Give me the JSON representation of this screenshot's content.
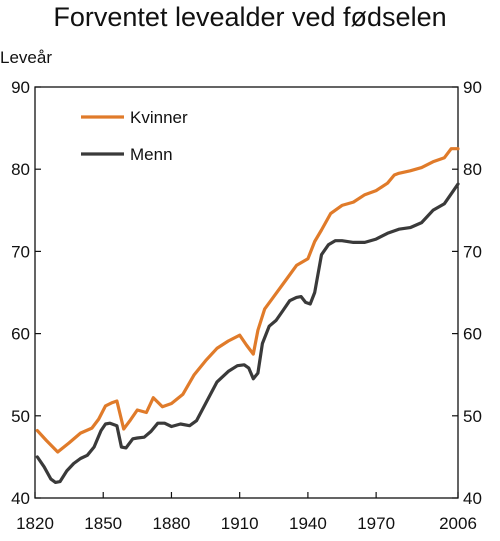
{
  "chart_data": {
    "type": "line",
    "title": "Forventet levealder ved fødselen",
    "ylabel": "Leveår",
    "xlabel": "",
    "xlim": [
      1820,
      2006
    ],
    "ylim": [
      40,
      90
    ],
    "xticks": [
      1820,
      1850,
      1880,
      1910,
      1940,
      1970,
      2006
    ],
    "yticks": [
      40,
      50,
      60,
      70,
      80,
      90
    ],
    "grid": false,
    "legend": "top-left",
    "series": [
      {
        "name": "Kvinner",
        "color": "#e07b2a",
        "x": [
          1821,
          1825,
          1830,
          1835,
          1840,
          1845,
          1848,
          1851,
          1854,
          1856,
          1859,
          1862,
          1865,
          1869,
          1872,
          1876,
          1880,
          1885,
          1890,
          1895,
          1900,
          1905,
          1910,
          1913,
          1916,
          1918,
          1921,
          1925,
          1930,
          1935,
          1940,
          1943,
          1946,
          1950,
          1955,
          1960,
          1965,
          1970,
          1975,
          1978,
          1980,
          1985,
          1990,
          1995,
          2000,
          2003,
          2006
        ],
        "y": [
          48.2,
          47.0,
          45.6,
          46.7,
          47.9,
          48.5,
          49.6,
          51.2,
          51.6,
          51.8,
          48.4,
          49.5,
          50.7,
          50.4,
          52.2,
          51.1,
          51.5,
          52.6,
          55.0,
          56.7,
          58.2,
          59.1,
          59.8,
          58.6,
          57.5,
          60.4,
          63.0,
          64.5,
          66.4,
          68.3,
          69.1,
          71.2,
          72.6,
          74.6,
          75.6,
          76.0,
          76.9,
          77.4,
          78.3,
          79.3,
          79.5,
          79.8,
          80.2,
          80.9,
          81.4,
          82.5,
          82.5
        ]
      },
      {
        "name": "Menn",
        "color": "#3a3a3a",
        "x": [
          1821,
          1824,
          1827,
          1829,
          1831,
          1834,
          1837,
          1840,
          1843,
          1846,
          1849,
          1851,
          1853,
          1856,
          1858,
          1860,
          1863,
          1865,
          1868,
          1871,
          1874,
          1877,
          1880,
          1884,
          1888,
          1891,
          1895,
          1900,
          1905,
          1909,
          1912,
          1914,
          1916,
          1918,
          1920,
          1923,
          1926,
          1929,
          1932,
          1935,
          1937,
          1939,
          1941,
          1943,
          1946,
          1949,
          1952,
          1955,
          1960,
          1965,
          1970,
          1975,
          1980,
          1985,
          1990,
          1995,
          2000,
          2004,
          2006
        ],
        "y": [
          45.0,
          43.8,
          42.3,
          41.9,
          42.0,
          43.3,
          44.2,
          44.8,
          45.2,
          46.2,
          48.2,
          49.0,
          49.1,
          48.8,
          46.2,
          46.1,
          47.2,
          47.3,
          47.4,
          48.1,
          49.1,
          49.1,
          48.7,
          49.0,
          48.8,
          49.4,
          51.5,
          54.1,
          55.4,
          56.1,
          56.2,
          55.8,
          54.5,
          55.2,
          58.8,
          60.9,
          61.6,
          62.8,
          64.0,
          64.4,
          64.5,
          63.8,
          63.6,
          65.0,
          69.6,
          70.8,
          71.3,
          71.3,
          71.1,
          71.1,
          71.5,
          72.2,
          72.7,
          72.9,
          73.5,
          75.0,
          75.8,
          77.4,
          78.2
        ]
      }
    ]
  }
}
